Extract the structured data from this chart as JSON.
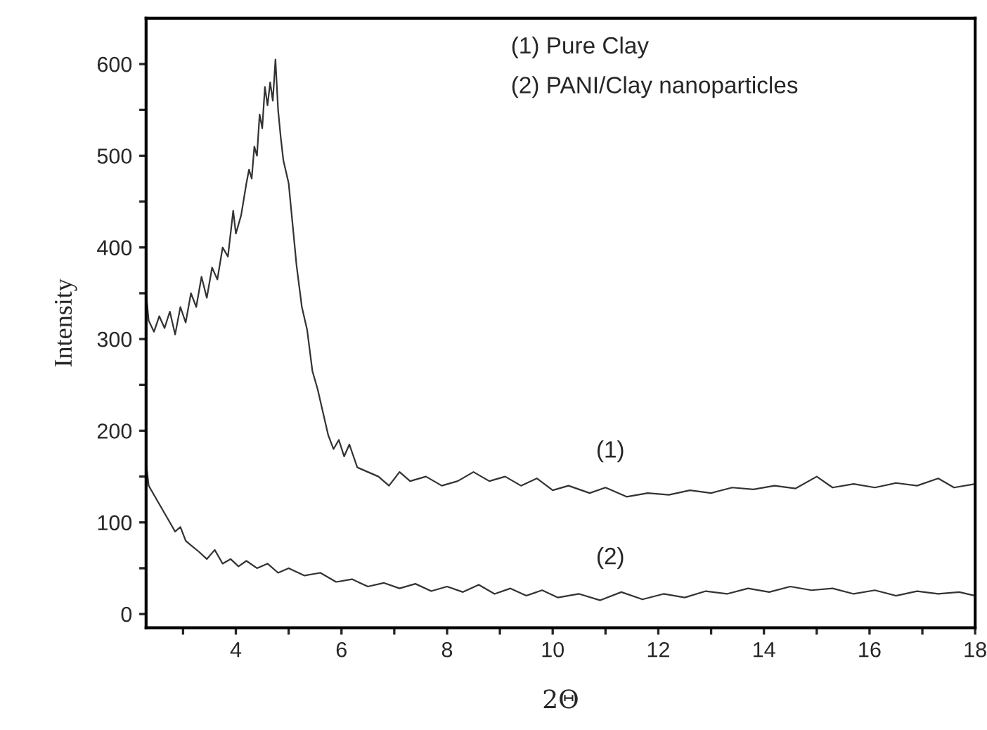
{
  "chart_data": {
    "type": "line",
    "xlabel": "2Θ",
    "ylabel": "Intensity",
    "annotations": [
      "(1) Pure Clay",
      "(2) PANI/Clay nanoparticles",
      "(1)",
      "(2)"
    ],
    "xlim": [
      2.3,
      18
    ],
    "ylim": [
      -15,
      650
    ],
    "xticks": [
      {
        "value": 3,
        "label": null
      },
      4,
      {
        "value": 5,
        "label": null
      },
      6,
      {
        "value": 7,
        "label": null
      },
      8,
      {
        "value": 9,
        "label": null
      },
      10,
      {
        "value": 11,
        "label": null
      },
      12,
      {
        "value": 13,
        "label": null
      },
      14,
      {
        "value": 15,
        "label": null
      },
      16,
      {
        "value": 17,
        "label": null
      },
      18
    ],
    "yticks": [
      0,
      {
        "value": 50,
        "label": null
      },
      100,
      {
        "value": 150,
        "label": null
      },
      200,
      {
        "value": 250,
        "label": null
      },
      300,
      {
        "value": 350,
        "label": null
      },
      400,
      {
        "value": 450,
        "label": null
      },
      500,
      {
        "value": 550,
        "label": null
      },
      600
    ],
    "grid": false,
    "legend": false,
    "series": [
      {
        "color": "#333333",
        "x": [
          2.3,
          2.35,
          2.45,
          2.55,
          2.65,
          2.75,
          2.85,
          2.95,
          3.05,
          3.15,
          3.25,
          3.35,
          3.45,
          3.55,
          3.65,
          3.75,
          3.85,
          3.95,
          4.0,
          4.1,
          4.2,
          4.25,
          4.3,
          4.35,
          4.4,
          4.45,
          4.5,
          4.55,
          4.6,
          4.65,
          4.7,
          4.75,
          4.8,
          4.85,
          4.9,
          5.0,
          5.05,
          5.15,
          5.25,
          5.35,
          5.45,
          5.55,
          5.65,
          5.75,
          5.85,
          5.95,
          6.05,
          6.15,
          6.3,
          6.5,
          6.7,
          6.9,
          7.1,
          7.3,
          7.6,
          7.9,
          8.2,
          8.5,
          8.8,
          9.1,
          9.4,
          9.7,
          10.0,
          10.3,
          10.7,
          11.0,
          11.4,
          11.8,
          12.2,
          12.6,
          13.0,
          13.4,
          13.8,
          14.2,
          14.6,
          15.0,
          15.3,
          15.7,
          16.1,
          16.5,
          16.9,
          17.3,
          17.6,
          18.0
        ],
        "values": [
          350,
          320,
          308,
          325,
          312,
          330,
          305,
          335,
          318,
          350,
          335,
          368,
          345,
          378,
          365,
          400,
          390,
          440,
          415,
          435,
          470,
          485,
          475,
          510,
          500,
          545,
          530,
          575,
          555,
          580,
          560,
          605,
          550,
          520,
          495,
          470,
          440,
          380,
          335,
          310,
          265,
          245,
          220,
          195,
          180,
          190,
          172,
          185,
          160,
          155,
          150,
          140,
          155,
          145,
          150,
          140,
          145,
          155,
          145,
          150,
          140,
          148,
          135,
          140,
          132,
          138,
          128,
          132,
          130,
          135,
          132,
          138,
          136,
          140,
          137,
          150,
          138,
          142,
          138,
          143,
          140,
          148,
          138,
          142
        ]
      },
      {
        "color": "#333333",
        "x": [
          2.3,
          2.35,
          2.45,
          2.55,
          2.65,
          2.75,
          2.85,
          2.95,
          3.05,
          3.15,
          3.3,
          3.45,
          3.6,
          3.75,
          3.9,
          4.05,
          4.2,
          4.4,
          4.6,
          4.8,
          5.0,
          5.3,
          5.6,
          5.9,
          6.2,
          6.5,
          6.8,
          7.1,
          7.4,
          7.7,
          8.0,
          8.3,
          8.6,
          8.9,
          9.2,
          9.5,
          9.8,
          10.1,
          10.5,
          10.9,
          11.3,
          11.7,
          12.1,
          12.5,
          12.9,
          13.3,
          13.7,
          14.1,
          14.5,
          14.9,
          15.3,
          15.7,
          16.1,
          16.5,
          16.9,
          17.3,
          17.7,
          18.0
        ],
        "values": [
          165,
          140,
          130,
          120,
          110,
          100,
          90,
          95,
          80,
          75,
          68,
          60,
          70,
          55,
          60,
          52,
          58,
          50,
          55,
          45,
          50,
          42,
          45,
          35,
          38,
          30,
          34,
          28,
          33,
          25,
          30,
          24,
          32,
          22,
          28,
          20,
          26,
          18,
          22,
          15,
          24,
          16,
          22,
          18,
          25,
          22,
          28,
          24,
          30,
          26,
          28,
          22,
          26,
          20,
          25,
          22,
          24,
          20
        ]
      }
    ]
  }
}
